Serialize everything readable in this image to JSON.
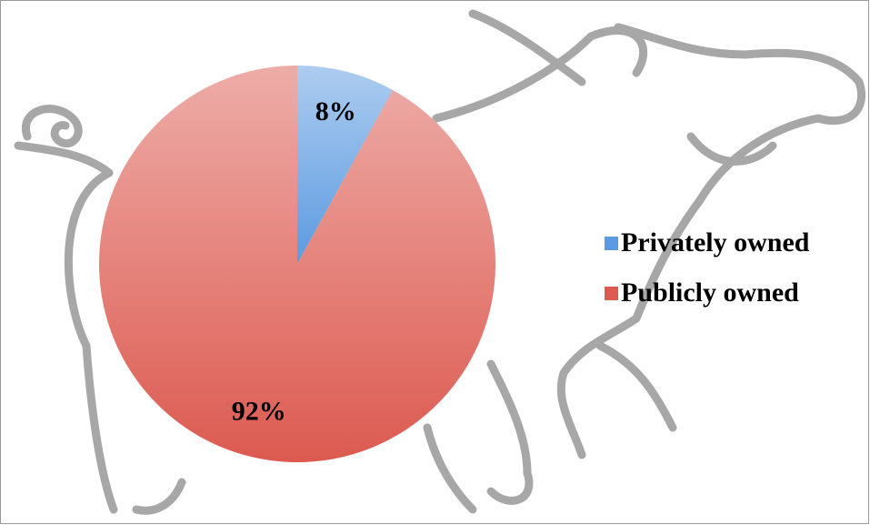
{
  "chart_data": {
    "type": "pie",
    "categories": [
      "Privately owned",
      "Publicly owned"
    ],
    "values": [
      8,
      92
    ],
    "value_labels": [
      "8%",
      "92%"
    ],
    "colors": [
      "#5b9ae0",
      "#dc5a50"
    ],
    "legend": "right"
  }
}
